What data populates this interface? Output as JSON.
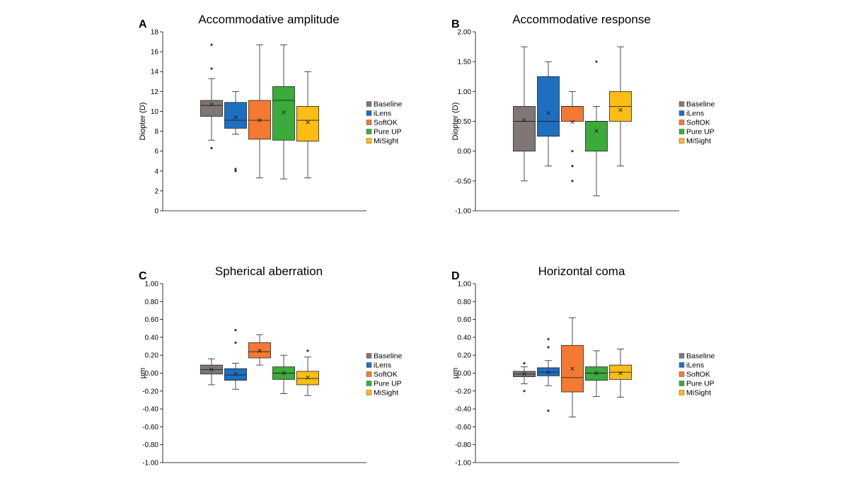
{
  "figure": {
    "legend_entries": [
      "Baseline",
      "iLens",
      "SoftOK",
      "Pure UP",
      "MiSight"
    ],
    "colors": {
      "Baseline": "#7f7776",
      "iLens": "#1e6fbf",
      "SoftOK": "#f47a33",
      "Pure UP": "#3bab3b",
      "MiSight": "#fbbd16"
    }
  },
  "chart_data": [
    {
      "panel": "A",
      "type": "box",
      "title": "Accommodative amplitude",
      "ylabel": "Diopter (D)",
      "ylim": [
        0,
        18
      ],
      "yticks": [
        "0",
        "2",
        "4",
        "6",
        "8",
        "10",
        "12",
        "14",
        "16",
        "18"
      ],
      "legend_position": "right",
      "series": [
        {
          "name": "Baseline",
          "min": 7.1,
          "q1": 9.5,
          "median": 10.6,
          "q3": 11.1,
          "max": 13.3,
          "mean": 10.7,
          "outliers": [
            6.3,
            14.3,
            16.7
          ]
        },
        {
          "name": "iLens",
          "min": 7.7,
          "q1": 8.3,
          "median": 9.1,
          "q3": 10.9,
          "max": 12.0,
          "mean": 9.4,
          "outliers": [
            4.0,
            4.2
          ]
        },
        {
          "name": "SoftOK",
          "min": 3.3,
          "q1": 7.2,
          "median": 9.1,
          "q3": 11.1,
          "max": 16.7,
          "mean": 9.1,
          "outliers": []
        },
        {
          "name": "Pure UP",
          "min": 3.2,
          "q1": 7.1,
          "median": 11.1,
          "q3": 12.5,
          "max": 16.7,
          "mean": 9.9,
          "outliers": []
        },
        {
          "name": "MiSight",
          "min": 3.3,
          "q1": 7.0,
          "median": 9.1,
          "q3": 10.5,
          "max": 14.0,
          "mean": 8.9,
          "outliers": []
        }
      ]
    },
    {
      "panel": "B",
      "type": "box",
      "title": "Accommodative response",
      "ylabel": "Diopter (D)",
      "ylim": [
        -1.0,
        2.0
      ],
      "yticks": [
        "-1.00",
        "-0.50",
        "0.00",
        "0.50",
        "1.00",
        "1.50",
        "2.00"
      ],
      "legend_position": "right",
      "series": [
        {
          "name": "Baseline",
          "min": -0.5,
          "q1": 0.0,
          "median": 0.5,
          "q3": 0.75,
          "max": 1.75,
          "mean": 0.52,
          "outliers": []
        },
        {
          "name": "iLens",
          "min": -0.25,
          "q1": 0.25,
          "median": 0.5,
          "q3": 1.25,
          "max": 1.5,
          "mean": 0.64,
          "outliers": []
        },
        {
          "name": "SoftOK",
          "min": 0.5,
          "q1": 0.5,
          "median": 0.75,
          "q3": 0.75,
          "max": 1.0,
          "mean": 0.49,
          "outliers": [
            0.0,
            -0.25,
            -0.5
          ]
        },
        {
          "name": "Pure UP",
          "min": -0.75,
          "q1": 0.0,
          "median": 0.5,
          "q3": 0.5,
          "max": 0.75,
          "mean": 0.34,
          "outliers": [
            1.5
          ]
        },
        {
          "name": "MiSight",
          "min": -0.25,
          "q1": 0.5,
          "median": 0.75,
          "q3": 1.0,
          "max": 1.75,
          "mean": 0.69,
          "outliers": []
        }
      ]
    },
    {
      "panel": "C",
      "type": "box",
      "title": "Spherical aberration",
      "ylabel": "µm",
      "ylim": [
        -1.0,
        1.0
      ],
      "yticks": [
        "-1.00",
        "-0.80",
        "-0.60",
        "-0.40",
        "-0.20",
        "0.00",
        "0.20",
        "0.40",
        "0.60",
        "0.80",
        "1.00"
      ],
      "legend_position": "right",
      "series": [
        {
          "name": "Baseline",
          "min": -0.13,
          "q1": -0.01,
          "median": 0.04,
          "q3": 0.09,
          "max": 0.16,
          "mean": 0.04,
          "outliers": []
        },
        {
          "name": "iLens",
          "min": -0.18,
          "q1": -0.08,
          "median": -0.02,
          "q3": 0.05,
          "max": 0.11,
          "mean": -0.01,
          "outliers": [
            0.34,
            0.48
          ]
        },
        {
          "name": "SoftOK",
          "min": 0.09,
          "q1": 0.17,
          "median": 0.24,
          "q3": 0.34,
          "max": 0.43,
          "mean": 0.25,
          "outliers": []
        },
        {
          "name": "Pure UP",
          "min": -0.23,
          "q1": -0.07,
          "median": 0.0,
          "q3": 0.07,
          "max": 0.2,
          "mean": 0.0,
          "outliers": []
        },
        {
          "name": "MiSight",
          "min": -0.25,
          "q1": -0.13,
          "median": -0.06,
          "q3": 0.02,
          "max": 0.18,
          "mean": -0.05,
          "outliers": [
            0.25
          ]
        }
      ]
    },
    {
      "panel": "D",
      "type": "box",
      "title": "Horizontal coma",
      "ylabel": "µm",
      "ylim": [
        -1.0,
        1.0
      ],
      "yticks": [
        "-1.00",
        "-0.80",
        "-0.60",
        "-0.40",
        "-0.20",
        "0.00",
        "0.20",
        "0.40",
        "0.60",
        "0.80",
        "1.00"
      ],
      "legend_position": "right",
      "series": [
        {
          "name": "Baseline",
          "min": -0.12,
          "q1": -0.04,
          "median": -0.01,
          "q3": 0.02,
          "max": 0.07,
          "mean": -0.01,
          "outliers": [
            0.11,
            -0.2
          ]
        },
        {
          "name": "iLens",
          "min": -0.14,
          "q1": -0.03,
          "median": 0.01,
          "q3": 0.06,
          "max": 0.14,
          "mean": 0.01,
          "outliers": [
            0.29,
            0.38,
            -0.42
          ]
        },
        {
          "name": "SoftOK",
          "min": -0.49,
          "q1": -0.21,
          "median": -0.05,
          "q3": 0.31,
          "max": 0.62,
          "mean": 0.05,
          "outliers": []
        },
        {
          "name": "Pure UP",
          "min": -0.26,
          "q1": -0.08,
          "median": 0.0,
          "q3": 0.07,
          "max": 0.25,
          "mean": 0.0,
          "outliers": []
        },
        {
          "name": "MiSight",
          "min": -0.27,
          "q1": -0.07,
          "median": 0.01,
          "q3": 0.09,
          "max": 0.27,
          "mean": 0.0,
          "outliers": []
        }
      ]
    }
  ]
}
